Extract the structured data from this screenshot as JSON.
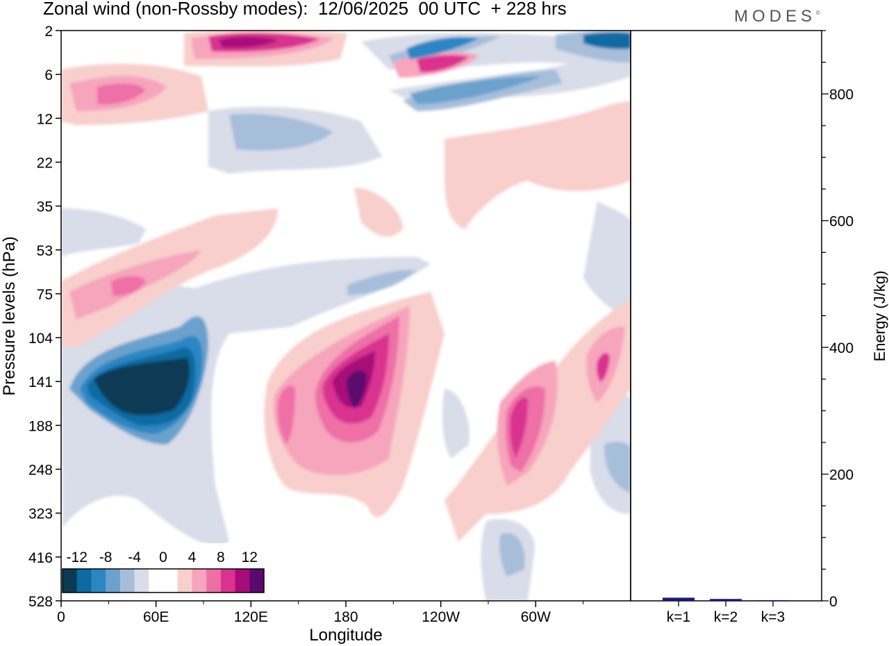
{
  "header": {
    "title": "Zonal wind (non-Rossby modes):  12/06/2025  00 UTC  + 228 hrs",
    "brand": "MODES"
  },
  "chart_data": [
    {
      "type": "heatmap",
      "title": "Zonal wind (non-Rossby modes):  12/06/2025  00 UTC  + 228 hrs",
      "xlabel": "Longitude",
      "ylabel": "Pressure levels (hPa)",
      "x_ticks": [
        "0",
        "60E",
        "120E",
        "180",
        "120W",
        "60W"
      ],
      "x_tick_values": [
        0,
        60,
        120,
        180,
        240,
        300
      ],
      "xlim": [
        0,
        360
      ],
      "y_ticks": [
        "2",
        "6",
        "12",
        "22",
        "35",
        "53",
        "75",
        "104",
        "141",
        "188",
        "248",
        "323",
        "416",
        "528"
      ],
      "y_scale": "category (model pressure levels, top to bottom)",
      "colorbar": {
        "labels": [
          "-12",
          "-8",
          "-4",
          "0",
          "4",
          "8",
          "12"
        ],
        "colors": [
          "#0c3a55",
          "#0d6aa2",
          "#2c86c4",
          "#6aa1cd",
          "#a7bedb",
          "#d9dce9",
          "#ffffff",
          "#ffffff",
          "#f8cfcc",
          "#f7a4bd",
          "#ee6fa6",
          "#d9338f",
          "#a80c79",
          "#5a0a6e"
        ],
        "placement": "bottom-left inset"
      },
      "features": [
        {
          "kind": "negative",
          "level": -12,
          "lon_range": [
            20,
            85
          ],
          "p_range": [
            104,
            188
          ],
          "note": "strongest easterly core near 141 hPa"
        },
        {
          "kind": "positive",
          "level": 12,
          "lon_range": [
            170,
            200
          ],
          "p_range": [
            104,
            248
          ],
          "note": "strong westerly core centered near 180"
        },
        {
          "kind": "positive",
          "level": 8,
          "lon_range": [
            280,
            300
          ],
          "p_range": [
            141,
            248
          ]
        },
        {
          "kind": "positive",
          "level": 8,
          "lon_range": [
            95,
            150
          ],
          "p_range": [
            2,
            6
          ]
        },
        {
          "kind": "negative",
          "level": -8,
          "lon_range": [
            220,
            320
          ],
          "p_range": [
            2,
            12
          ]
        },
        {
          "kind": "positive",
          "level": 6,
          "lon_range": [
            20,
            55
          ],
          "p_range": [
            53,
            104
          ]
        }
      ],
      "grid": false
    },
    {
      "type": "bar",
      "ylabel": "Energy (J/kg)",
      "categories": [
        "k=1",
        "k=2",
        "k=3"
      ],
      "values": [
        5,
        3,
        1
      ],
      "ylim": [
        0,
        900
      ],
      "y_ticks": [
        0,
        200,
        400,
        600,
        800
      ],
      "color": "#1a1a7a"
    }
  ]
}
